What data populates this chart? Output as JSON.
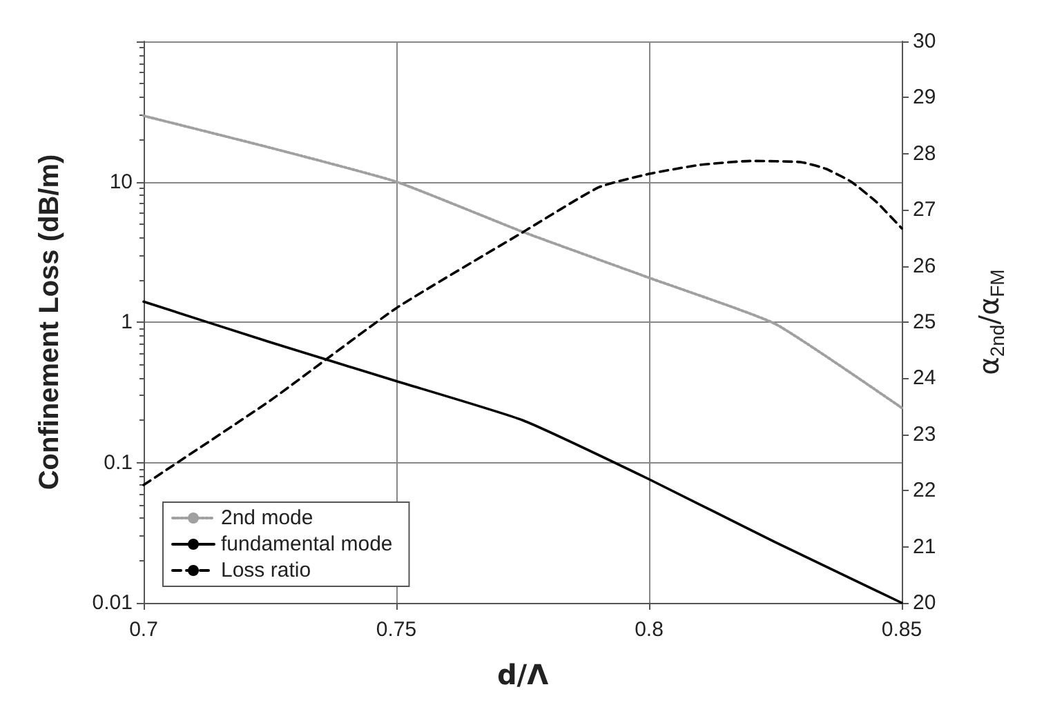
{
  "chart_data": {
    "type": "line",
    "xlabel": "d/Λ",
    "ylabel": "Confinement Loss (dB/m)",
    "y2label": "α$_{2nd}$/α$_{FM}$",
    "series": [
      {
        "name": "2nd mode",
        "color": "#a0a0a0",
        "line_style": "dotted",
        "x": [
          0.7,
          0.725,
          0.75,
          0.775,
          0.8,
          0.825,
          0.85
        ],
        "values": [
          29.5,
          17.5,
          10,
          4.4,
          2.07,
          0.97,
          0.245
        ]
      },
      {
        "name": "fundamental mode",
        "color": "#000000",
        "line_style": "solid",
        "x": [
          0.7,
          0.725,
          0.75,
          0.775,
          0.8,
          0.825,
          0.85
        ],
        "values": [
          1.4,
          0.72,
          0.38,
          0.2,
          0.076,
          0.027,
          0.01
        ]
      },
      {
        "name": "Loss ratio",
        "color": "#000000",
        "line_style": "dashed",
        "axis": "y2",
        "x": [
          0.7,
          0.725,
          0.75,
          0.775,
          0.79,
          0.8,
          0.81,
          0.82,
          0.83,
          0.835,
          0.84,
          0.845,
          0.85
        ],
        "values": [
          22.1,
          23.6,
          25.25,
          26.6,
          27.4,
          27.64,
          27.8,
          27.87,
          27.85,
          27.73,
          27.5,
          27.14,
          26.67
        ]
      }
    ],
    "xlim": [
      0.7,
      0.85
    ],
    "xticks": [
      0.7,
      0.75,
      0.8,
      0.85
    ],
    "ylim": [
      0.01,
      100
    ],
    "yticks": [
      0.01,
      0.1,
      1,
      10,
      {
        "value": 100,
        "label": null
      }
    ],
    "y2lim": [
      20,
      30
    ],
    "y2ticks": [
      20,
      21,
      22,
      23,
      24,
      25,
      26,
      27,
      28,
      29,
      30
    ],
    "log": "y",
    "grid": true,
    "legend": "bottom left",
    "marker": "none"
  }
}
